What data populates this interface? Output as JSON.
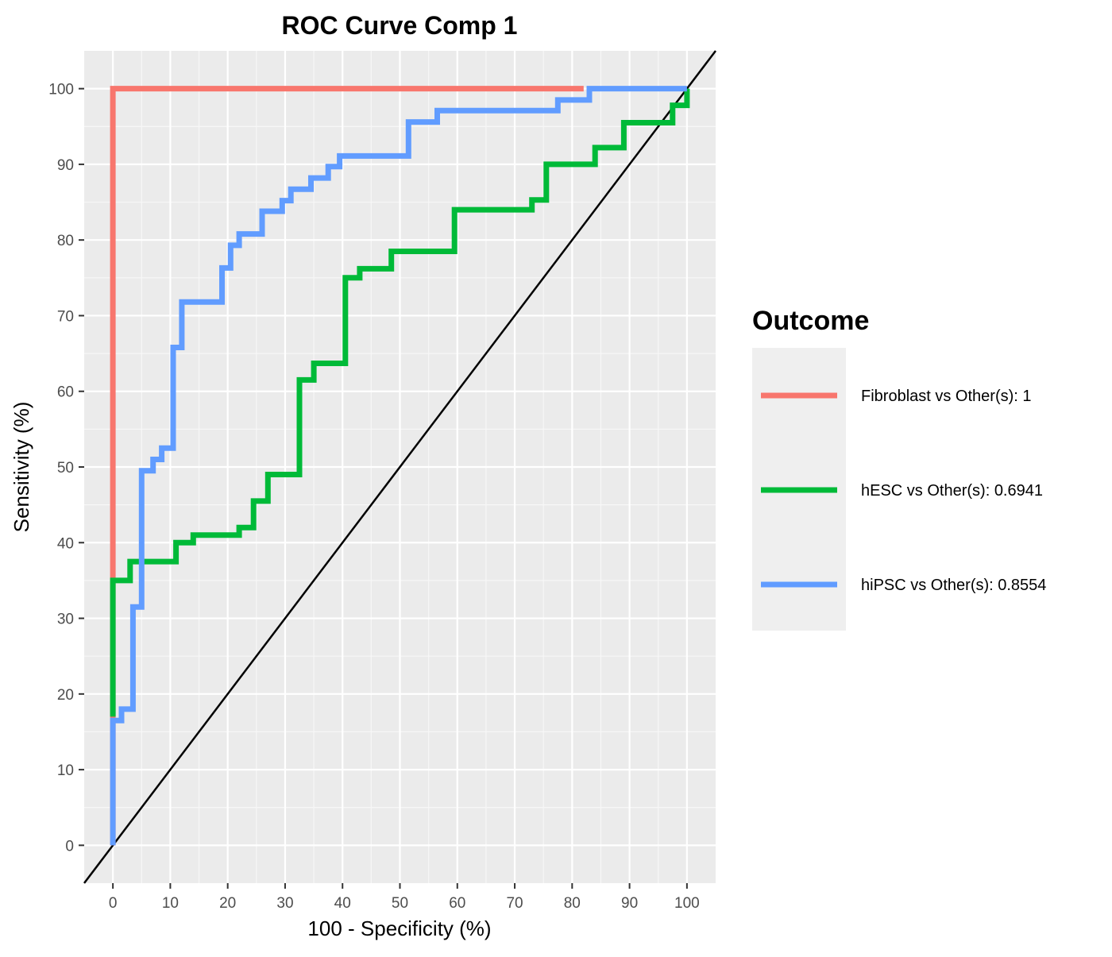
{
  "chart_data": {
    "type": "line",
    "title": "ROC Curve Comp 1",
    "xlabel": "100 - Specificity (%)",
    "ylabel": "Sensitivity (%)",
    "xlim": [
      -5,
      105
    ],
    "ylim": [
      -5,
      105
    ],
    "xticks": [
      0,
      10,
      20,
      30,
      40,
      50,
      60,
      70,
      80,
      90,
      100
    ],
    "yticks": [
      0,
      10,
      20,
      30,
      40,
      50,
      60,
      70,
      80,
      90,
      100
    ],
    "grid": true,
    "legend_title": "Outcome",
    "legend_position": "right",
    "diagonal_reference": [
      [
        -5,
        -5
      ],
      [
        105,
        105
      ]
    ],
    "series": [
      {
        "name": "Fibroblast vs Other(s): 1",
        "color": "#F8766D",
        "points": [
          [
            0,
            0
          ],
          [
            0,
            100
          ],
          [
            82,
            100
          ]
        ]
      },
      {
        "name": "hESC vs Other(s): 0.6941",
        "color": "#00BA38",
        "points": [
          [
            0,
            17
          ],
          [
            0,
            35
          ],
          [
            3,
            35
          ],
          [
            3,
            37.5
          ],
          [
            11,
            37.5
          ],
          [
            11,
            40
          ],
          [
            14,
            40
          ],
          [
            14,
            41
          ],
          [
            22,
            41
          ],
          [
            22,
            42
          ],
          [
            24.5,
            42
          ],
          [
            24.5,
            45.5
          ],
          [
            27,
            45.5
          ],
          [
            27,
            49
          ],
          [
            32.5,
            49
          ],
          [
            32.5,
            61.5
          ],
          [
            35,
            61.5
          ],
          [
            35,
            63.7
          ],
          [
            40.5,
            63.7
          ],
          [
            40.5,
            75
          ],
          [
            43,
            75
          ],
          [
            43,
            76.2
          ],
          [
            48.5,
            76.2
          ],
          [
            48.5,
            78.5
          ],
          [
            59.5,
            78.5
          ],
          [
            59.5,
            84
          ],
          [
            73,
            84
          ],
          [
            73,
            85.3
          ],
          [
            75.5,
            85.3
          ],
          [
            75.5,
            90
          ],
          [
            84,
            90
          ],
          [
            84,
            92.2
          ],
          [
            89,
            92.2
          ],
          [
            89,
            95.5
          ],
          [
            97.5,
            95.5
          ],
          [
            97.5,
            97.8
          ],
          [
            100,
            97.8
          ],
          [
            100,
            100
          ]
        ]
      },
      {
        "name": "hiPSC vs Other(s): 0.8554",
        "color": "#619CFF",
        "points": [
          [
            0,
            0
          ],
          [
            0,
            16.5
          ],
          [
            1.5,
            16.5
          ],
          [
            1.5,
            18
          ],
          [
            3.5,
            18
          ],
          [
            3.5,
            31.5
          ],
          [
            5,
            31.5
          ],
          [
            5,
            49.5
          ],
          [
            7,
            49.5
          ],
          [
            7,
            51
          ],
          [
            8.5,
            51
          ],
          [
            8.5,
            52.5
          ],
          [
            10.5,
            52.5
          ],
          [
            10.5,
            65.8
          ],
          [
            12,
            65.8
          ],
          [
            12,
            71.8
          ],
          [
            19,
            71.8
          ],
          [
            19,
            76.3
          ],
          [
            20.5,
            76.3
          ],
          [
            20.5,
            79.3
          ],
          [
            22,
            79.3
          ],
          [
            22,
            80.8
          ],
          [
            26,
            80.8
          ],
          [
            26,
            83.8
          ],
          [
            29.5,
            83.8
          ],
          [
            29.5,
            85.2
          ],
          [
            31,
            85.2
          ],
          [
            31,
            86.7
          ],
          [
            34.5,
            86.7
          ],
          [
            34.5,
            88.2
          ],
          [
            37.5,
            88.2
          ],
          [
            37.5,
            89.7
          ],
          [
            39.5,
            89.7
          ],
          [
            39.5,
            91.1
          ],
          [
            51.5,
            91.1
          ],
          [
            51.5,
            95.6
          ],
          [
            56.5,
            95.6
          ],
          [
            56.5,
            97.1
          ],
          [
            77.5,
            97.1
          ],
          [
            77.5,
            98.5
          ],
          [
            83,
            98.5
          ],
          [
            83,
            100
          ],
          [
            100,
            100
          ]
        ]
      }
    ]
  }
}
